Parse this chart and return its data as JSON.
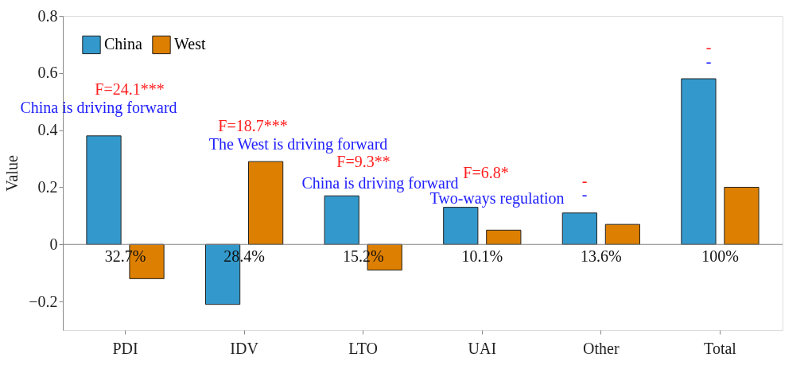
{
  "chart_data": {
    "type": "bar",
    "ylabel": "Value",
    "categories": [
      "PDI",
      "IDV",
      "LTO",
      "UAI",
      "Other",
      "Total"
    ],
    "series": [
      {
        "name": "China",
        "color": "#3399cc",
        "values": [
          0.38,
          -0.21,
          0.17,
          0.13,
          0.11,
          0.58
        ]
      },
      {
        "name": "West",
        "color": "#dd7f00",
        "values": [
          -0.12,
          0.29,
          -0.09,
          0.05,
          0.07,
          0.2
        ]
      }
    ],
    "ylim": [
      -0.3,
      0.8
    ],
    "yticks": [
      -0.2,
      0,
      0.2,
      0.4,
      0.6,
      0.8
    ],
    "grid": false,
    "legend": "top left",
    "annotations": [
      "F=24.1***",
      "China is driving forward",
      "F=18.7***",
      "The West is driving forward",
      "F=9.3**",
      "China is driving forward",
      "F=6.8*",
      "Two-ways regulation",
      "-",
      "-",
      "-",
      "-",
      "32.7%",
      "28.4%",
      "15.2%",
      "10.1%",
      "13.6%",
      "100%"
    ],
    "ref_lines": [
      {
        "axis": "y",
        "value": 0
      }
    ]
  }
}
